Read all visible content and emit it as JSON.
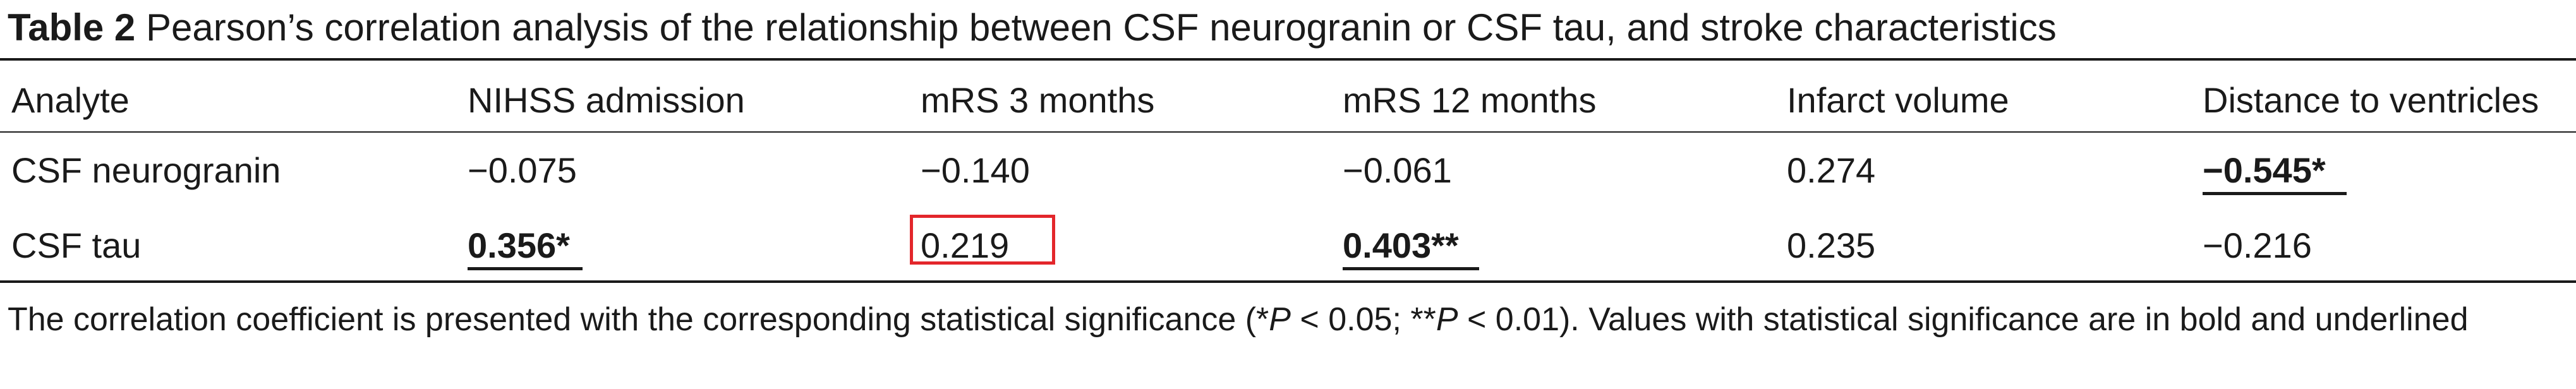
{
  "caption": {
    "label": "Table 2",
    "title": "Pearson’s correlation analysis of the relationship between CSF neurogranin or CSF tau, and stroke characteristics"
  },
  "table": {
    "headers": [
      "Analyte",
      "NIHSS admission",
      "mRS 3 months",
      "mRS 12 months",
      "Infarct volume",
      "Distance to ventricles"
    ],
    "rows": [
      {
        "analyte": "CSF neurogranin",
        "values": [
          "−0.075",
          "−0.140",
          "−0.061",
          "0.274",
          "−0.545*"
        ],
        "significant": [
          false,
          false,
          false,
          false,
          true
        ]
      },
      {
        "analyte": "CSF tau",
        "values": [
          "0.356*",
          "0.219",
          "0.403**",
          "0.235",
          "−0.216"
        ],
        "significant": [
          true,
          false,
          true,
          false,
          false
        ]
      }
    ]
  },
  "highlight_color": "#e3262b",
  "footnote": {
    "part1": "The correlation coefficient is presented with the corresponding statistical significance (*",
    "p1": "P",
    "part2": " < 0.05; **",
    "p2": "P",
    "part3": " < 0.01). Values with statistical significance are in bold and underlined"
  }
}
